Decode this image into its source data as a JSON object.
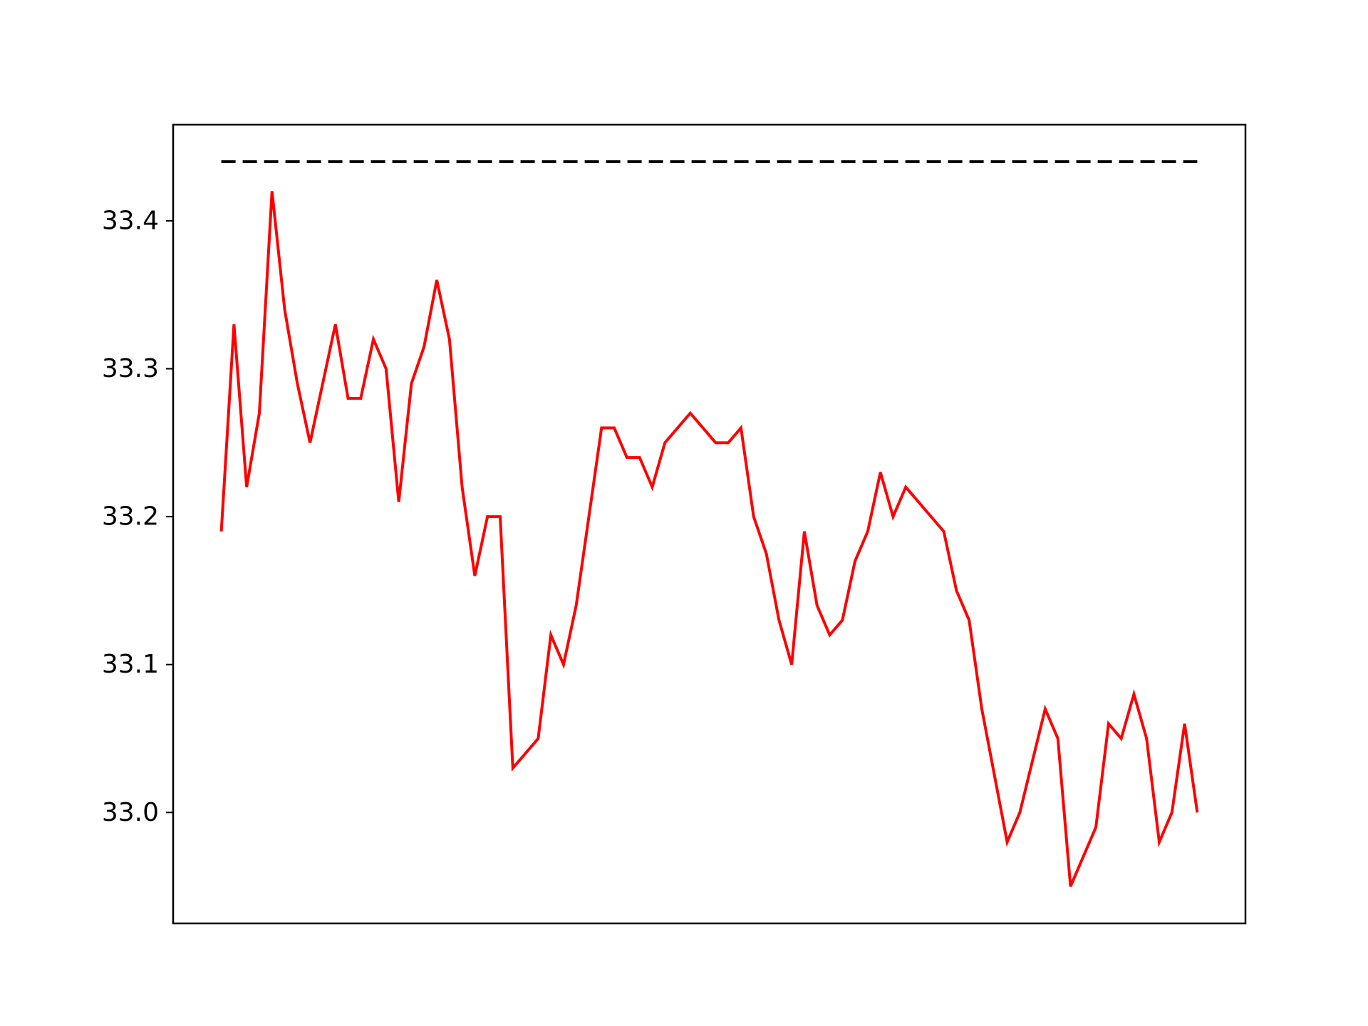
{
  "chart_data": {
    "type": "line",
    "title": "",
    "xlabel": "",
    "ylabel": "",
    "x_ticks_visible": false,
    "xlim": [
      -3.8,
      80.8
    ],
    "ylim": [
      32.925,
      33.465
    ],
    "yticks": [
      "33.0",
      "33.1",
      "33.2",
      "33.3",
      "33.4"
    ],
    "grid": false,
    "legend": "none",
    "series": [
      {
        "color": "#ff0000",
        "style": "solid",
        "x": [
          0,
          1,
          2,
          3,
          4,
          5,
          6,
          7,
          8,
          9,
          10,
          11,
          12,
          13,
          14,
          15,
          16,
          17,
          18,
          19,
          20,
          21,
          22,
          23,
          24,
          25,
          26,
          27,
          28,
          29,
          30,
          31,
          32,
          33,
          34,
          35,
          36,
          37,
          38,
          39,
          40,
          41,
          42,
          43,
          44,
          45,
          46,
          47,
          48,
          49,
          50,
          51,
          52,
          53,
          54,
          55,
          56,
          57,
          58,
          59,
          60,
          61,
          62,
          63,
          64,
          65,
          66,
          67,
          68,
          69,
          70,
          71,
          72,
          73,
          74,
          75,
          76,
          77
        ],
        "values": [
          33.19,
          33.33,
          33.22,
          33.27,
          33.42,
          33.34,
          33.29,
          33.25,
          33.29,
          33.33,
          33.28,
          33.28,
          33.32,
          33.3,
          33.21,
          33.29,
          33.315,
          33.36,
          33.32,
          33.22,
          33.16,
          33.2,
          33.2,
          33.03,
          33.04,
          33.05,
          33.12,
          33.1,
          33.14,
          33.2,
          33.26,
          33.26,
          33.24,
          33.24,
          33.22,
          33.25,
          33.26,
          33.27,
          33.26,
          33.25,
          33.25,
          33.26,
          33.2,
          33.175,
          33.13,
          33.1,
          33.19,
          33.14,
          33.12,
          33.13,
          33.17,
          33.19,
          33.23,
          33.2,
          33.22,
          33.21,
          33.2,
          33.19,
          33.15,
          33.13,
          33.07,
          33.025,
          32.98,
          33.0,
          33.035,
          33.07,
          33.05,
          32.95,
          32.97,
          32.99,
          33.06,
          33.05,
          33.08,
          33.05,
          32.98,
          33.0,
          33.06,
          33.0
        ]
      },
      {
        "color": "#000000",
        "style": "dashed",
        "x": [
          0,
          77
        ],
        "values": [
          33.44,
          33.44
        ]
      }
    ]
  }
}
